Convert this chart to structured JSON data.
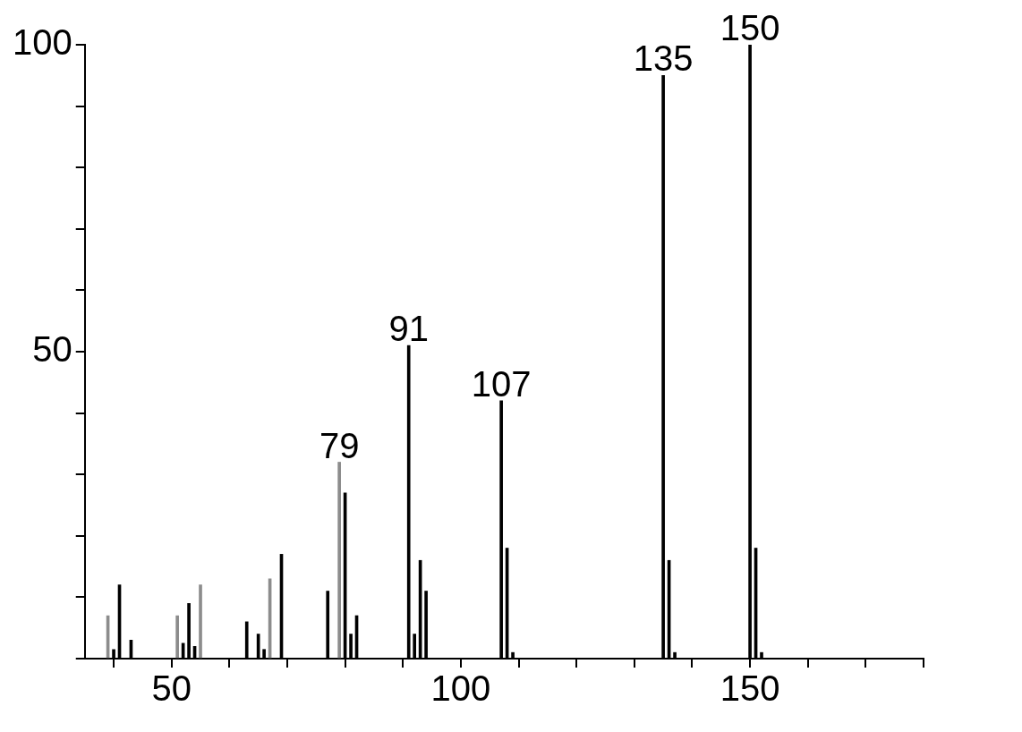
{
  "chart_data": {
    "type": "bar",
    "grid": false,
    "x": [
      39,
      40,
      41,
      43,
      51,
      52,
      53,
      54,
      55,
      63,
      65,
      66,
      67,
      69,
      77,
      79,
      80,
      81,
      82,
      91,
      92,
      93,
      94,
      107,
      108,
      109,
      135,
      136,
      137,
      150,
      151,
      152
    ],
    "values": [
      7,
      1.5,
      12,
      3,
      7,
      2.5,
      9,
      2,
      12,
      6,
      4,
      1.5,
      13,
      17,
      11,
      32,
      27,
      4,
      7,
      51,
      4,
      16,
      11,
      42,
      18,
      1,
      95,
      16,
      1,
      100,
      18,
      1
    ],
    "colors": [
      "#8c8c8c",
      "#000000",
      "#000000",
      "#000000",
      "#8c8c8c",
      "#000000",
      "#000000",
      "#000000",
      "#8c8c8c",
      "#000000",
      "#000000",
      "#000000",
      "#8c8c8c",
      "#000000",
      "#000000",
      "#8c8c8c",
      "#000000",
      "#000000",
      "#000000",
      "#000000",
      "#000000",
      "#000000",
      "#000000",
      "#000000",
      "#000000",
      "#000000",
      "#000000",
      "#000000",
      "#000000",
      "#000000",
      "#000000",
      "#000000"
    ],
    "xlim": [
      35,
      180
    ],
    "xticks": [
      {
        "value": 40,
        "label": null
      },
      50,
      {
        "value": 60,
        "label": null
      },
      {
        "value": 70,
        "label": null
      },
      {
        "value": 80,
        "label": null
      },
      {
        "value": 90,
        "label": null
      },
      100,
      {
        "value": 110,
        "label": null
      },
      {
        "value": 120,
        "label": null
      },
      {
        "value": 130,
        "label": null
      },
      {
        "value": 140,
        "label": null
      },
      150,
      {
        "value": 160,
        "label": null
      },
      {
        "value": 170,
        "label": null
      },
      {
        "value": 180,
        "label": null
      }
    ],
    "ylim": [
      0,
      100
    ],
    "yticks": [
      {
        "value": 0,
        "label": null
      },
      {
        "value": 10,
        "label": null
      },
      {
        "value": 20,
        "label": null
      },
      {
        "value": 30,
        "label": null
      },
      {
        "value": 40,
        "label": null
      },
      50,
      {
        "value": 60,
        "label": null
      },
      {
        "value": 70,
        "label": null
      },
      {
        "value": 80,
        "label": null
      },
      {
        "value": 90,
        "label": null
      },
      100
    ],
    "annotations": [
      {
        "text": "79",
        "x": 79,
        "y": 32
      },
      {
        "text": "91",
        "x": 91,
        "y": 51
      },
      {
        "text": "107",
        "x": 107,
        "y": 42
      },
      {
        "text": "135",
        "x": 135,
        "y": 95
      },
      {
        "text": "150",
        "x": 150,
        "y": 100
      }
    ]
  }
}
